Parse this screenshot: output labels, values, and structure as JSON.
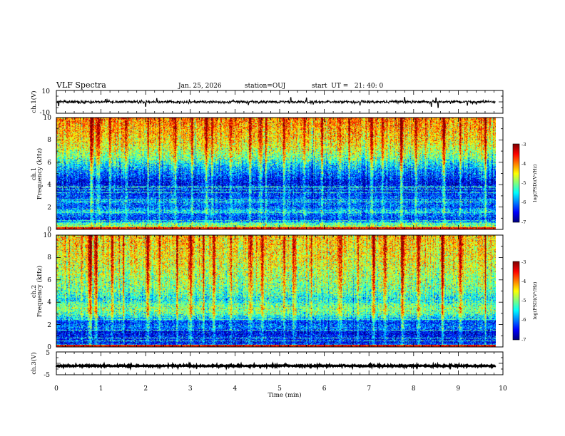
{
  "header": {
    "title": "VLF Spectra",
    "date": "Jan. 25, 2026",
    "station": "station=OUJ",
    "start": "start  UT =   21: 40: 0"
  },
  "chart_data": [
    {
      "id": "ch1-waveform",
      "type": "line",
      "ylabel": "ch.1(V)",
      "ylim": [
        -10,
        10
      ],
      "yticks": [
        "10",
        "-10"
      ],
      "xlim": [
        0,
        10
      ],
      "x_extent": [
        0,
        9.83
      ],
      "baseline": 0,
      "noise_amplitude": 1.2,
      "spikes": [
        {
          "t": 0.05,
          "v": -3.5
        },
        {
          "t": 1.1,
          "v": 2.2
        },
        {
          "t": 2.0,
          "v": -4.0
        },
        {
          "t": 2.25,
          "v": 3.0
        },
        {
          "t": 4.3,
          "v": -2.5
        },
        {
          "t": 5.25,
          "v": 3.8
        },
        {
          "t": 5.6,
          "v": 3.5
        },
        {
          "t": 5.75,
          "v": -2.0
        },
        {
          "t": 6.8,
          "v": -2.8
        },
        {
          "t": 7.8,
          "v": 4.0
        },
        {
          "t": 8.4,
          "v": -4.0
        },
        {
          "t": 8.5,
          "v": 3.5
        },
        {
          "t": 8.55,
          "v": -5.0
        },
        {
          "t": 9.2,
          "v": -3.0
        },
        {
          "t": 9.4,
          "v": -2.0
        }
      ]
    },
    {
      "id": "ch1-spectrogram",
      "type": "heatmap",
      "ylabel": "ch.1\nFrequency (kHz)",
      "ylim": [
        0,
        10
      ],
      "yticks": [
        "0",
        "2",
        "4",
        "6",
        "8",
        "10"
      ],
      "xlim": [
        0,
        10
      ],
      "x_extent": [
        0,
        9.83
      ],
      "colorbar": {
        "label": "log(PSD)(V²/Hz)",
        "range": [
          -7,
          -3
        ],
        "ticks": [
          "-3",
          "-4",
          "-5",
          "-6",
          "-7"
        ]
      },
      "profile": [
        {
          "f": 0.0,
          "v": -3.6
        },
        {
          "f": 0.2,
          "v": -4.8
        },
        {
          "f": 0.5,
          "v": -5.3
        },
        {
          "f": 0.8,
          "v": -6.3
        },
        {
          "f": 1.3,
          "v": -6.1
        },
        {
          "f": 1.6,
          "v": -5.6
        },
        {
          "f": 2.0,
          "v": -6.2
        },
        {
          "f": 2.5,
          "v": -6.0
        },
        {
          "f": 3.0,
          "v": -6.3
        },
        {
          "f": 3.6,
          "v": -6.4
        },
        {
          "f": 4.2,
          "v": -6.6
        },
        {
          "f": 4.6,
          "v": -6.3
        },
        {
          "f": 5.2,
          "v": -6.0
        },
        {
          "f": 5.8,
          "v": -5.6
        },
        {
          "f": 6.4,
          "v": -5.1
        },
        {
          "f": 7.2,
          "v": -4.7
        },
        {
          "f": 8.0,
          "v": -4.4
        },
        {
          "f": 9.0,
          "v": -4.2
        },
        {
          "f": 10.0,
          "v": -4.0
        }
      ],
      "harmonic_lines_khz": [
        0.5,
        0.75,
        1.5,
        2.45,
        2.6,
        3.3,
        3.5,
        3.7,
        3.85
      ],
      "bursts": [
        {
          "t": 0.78,
          "s": 1.4
        },
        {
          "t": 0.93,
          "s": 0.8
        },
        {
          "t": 1.2,
          "s": 1.0
        },
        {
          "t": 1.55,
          "s": 0.9
        },
        {
          "t": 2.05,
          "s": 0.9
        },
        {
          "t": 2.3,
          "s": 0.8
        },
        {
          "t": 2.65,
          "s": 1.0
        },
        {
          "t": 3.03,
          "s": 1.1
        },
        {
          "t": 3.35,
          "s": 1.0
        },
        {
          "t": 3.48,
          "s": 1.2
        },
        {
          "t": 3.9,
          "s": 0.8
        },
        {
          "t": 4.33,
          "s": 1.0
        },
        {
          "t": 4.57,
          "s": 0.8
        },
        {
          "t": 4.68,
          "s": 1.0
        },
        {
          "t": 5.1,
          "s": 0.9
        },
        {
          "t": 5.55,
          "s": 0.8
        },
        {
          "t": 5.95,
          "s": 0.9
        },
        {
          "t": 6.34,
          "s": 0.8
        },
        {
          "t": 6.56,
          "s": 1.2
        },
        {
          "t": 7.05,
          "s": 1.0
        },
        {
          "t": 7.3,
          "s": 0.8
        },
        {
          "t": 7.72,
          "s": 1.3
        },
        {
          "t": 8.05,
          "s": 1.0
        },
        {
          "t": 8.68,
          "s": 1.2
        },
        {
          "t": 9.05,
          "s": 0.8
        },
        {
          "t": 9.6,
          "s": 0.9
        }
      ]
    },
    {
      "id": "ch2-spectrogram",
      "type": "heatmap",
      "ylabel": "ch.2\nFrequency (kHz)",
      "ylim": [
        0,
        10
      ],
      "yticks": [
        "0",
        "2",
        "4",
        "6",
        "8",
        "10"
      ],
      "xlim": [
        0,
        10
      ],
      "x_extent": [
        0,
        9.83
      ],
      "colorbar": {
        "label": "log(PSD)(V²/Hz)",
        "range": [
          -7,
          -3
        ],
        "ticks": [
          "-3",
          "-4",
          "-5",
          "-6",
          "-7"
        ]
      },
      "profile": [
        {
          "f": 0.0,
          "v": -5.2
        },
        {
          "f": 0.3,
          "v": -6.5
        },
        {
          "f": 0.8,
          "v": -6.4
        },
        {
          "f": 1.3,
          "v": -6.6
        },
        {
          "f": 1.7,
          "v": -6.0
        },
        {
          "f": 2.2,
          "v": -6.3
        },
        {
          "f": 2.6,
          "v": -5.6
        },
        {
          "f": 3.0,
          "v": -5.1
        },
        {
          "f": 3.5,
          "v": -5.0
        },
        {
          "f": 3.9,
          "v": -5.3
        },
        {
          "f": 4.3,
          "v": -5.5
        },
        {
          "f": 5.0,
          "v": -5.1
        },
        {
          "f": 6.0,
          "v": -4.9
        },
        {
          "f": 7.0,
          "v": -4.7
        },
        {
          "f": 8.0,
          "v": -4.5
        },
        {
          "f": 9.0,
          "v": -4.4
        },
        {
          "f": 10.0,
          "v": -4.3
        }
      ],
      "harmonic_lines_khz": [
        0.5,
        0.75,
        1.5,
        2.45,
        3.3,
        3.5,
        3.7,
        3.85
      ],
      "bursts": [
        {
          "t": 0.75,
          "s": 1.6
        },
        {
          "t": 0.88,
          "s": 1.2
        },
        {
          "t": 1.25,
          "s": 1.0
        },
        {
          "t": 1.5,
          "s": 0.9
        },
        {
          "t": 2.05,
          "s": 1.0
        },
        {
          "t": 2.3,
          "s": 0.8
        },
        {
          "t": 2.7,
          "s": 1.2
        },
        {
          "t": 3.0,
          "s": 1.1
        },
        {
          "t": 3.3,
          "s": 1.0
        },
        {
          "t": 3.52,
          "s": 1.0
        },
        {
          "t": 3.9,
          "s": 0.8
        },
        {
          "t": 4.35,
          "s": 1.0
        },
        {
          "t": 4.6,
          "s": 1.1
        },
        {
          "t": 5.1,
          "s": 0.9
        },
        {
          "t": 5.3,
          "s": 0.8
        },
        {
          "t": 5.7,
          "s": 0.8
        },
        {
          "t": 6.35,
          "s": 0.9
        },
        {
          "t": 6.75,
          "s": 0.9
        },
        {
          "t": 7.1,
          "s": 1.1
        },
        {
          "t": 7.35,
          "s": 1.0
        },
        {
          "t": 7.75,
          "s": 1.4
        },
        {
          "t": 8.1,
          "s": 1.0
        },
        {
          "t": 8.65,
          "s": 1.4
        },
        {
          "t": 9.05,
          "s": 0.9
        },
        {
          "t": 9.6,
          "s": 1.0
        }
      ]
    },
    {
      "id": "ch3-waveform",
      "type": "line",
      "ylabel": "ch.3(V)",
      "ylim": [
        -5,
        5
      ],
      "yticks": [
        "5",
        "-5"
      ],
      "xlim": [
        0,
        10
      ],
      "x_extent": [
        0,
        9.83
      ],
      "baseline": -1.1,
      "noise_amplitude": 0.35
    }
  ],
  "x_axis": {
    "label": "Time (min)",
    "ticks": [
      "0",
      "1",
      "2",
      "3",
      "4",
      "5",
      "6",
      "7",
      "8",
      "9",
      "10"
    ]
  }
}
